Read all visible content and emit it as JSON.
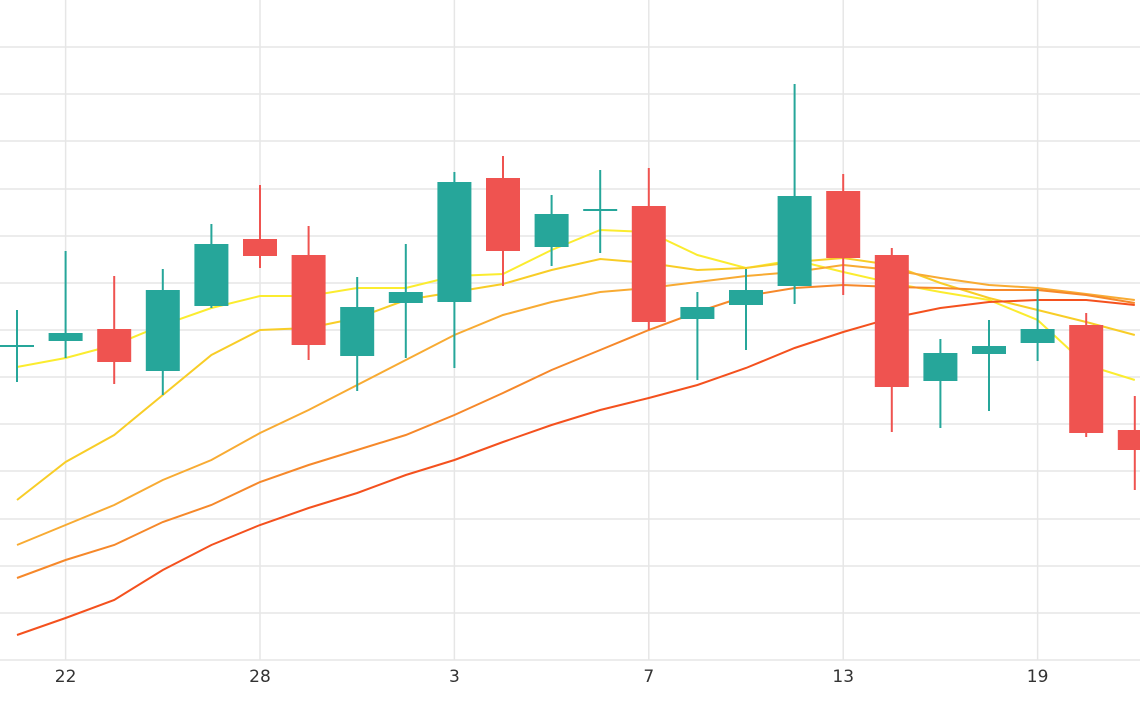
{
  "chart_data": {
    "type": "candlestick",
    "categories": [
      null,
      "22",
      null,
      null,
      null,
      "28",
      null,
      null,
      null,
      "3",
      null,
      null,
      null,
      "7",
      null,
      null,
      null,
      "13",
      null,
      null,
      null,
      "19",
      null,
      null
    ],
    "open": [
      314,
      319,
      331,
      289,
      354,
      421,
      405,
      304,
      357,
      358,
      482,
      413,
      450,
      454,
      341,
      355,
      374,
      469,
      405,
      279,
      306,
      317,
      335,
      230
    ],
    "high": [
      350,
      409,
      384,
      391,
      436,
      475,
      434,
      383,
      416,
      488,
      504,
      465,
      490,
      492,
      368,
      391,
      576,
      486,
      412,
      321,
      340,
      371,
      347,
      264
    ],
    "low": [
      278,
      302,
      276,
      265,
      352,
      392,
      300,
      269,
      302,
      292,
      374,
      394,
      407,
      330,
      280,
      310,
      356,
      365,
      228,
      232,
      249,
      299,
      223,
      170
    ],
    "close": [
      314,
      327,
      298,
      370,
      416,
      404,
      315,
      353,
      368,
      478,
      409,
      446,
      450,
      338,
      353,
      370,
      464,
      402,
      273,
      307,
      314,
      331,
      227,
      210
    ],
    "up_color": "#26a69a",
    "down_color": "#ef5350",
    "lines": [
      {
        "color": "#fbec2f",
        "values": [
          293,
          302,
          315,
          335,
          352,
          364,
          364,
          372,
          372,
          384,
          386,
          410,
          430,
          428,
          405,
          392,
          400,
          388,
          377,
          368,
          360,
          340,
          295,
          280
        ]
      },
      {
        "color": "#f8cd27",
        "values": [
          160,
          198,
          225,
          265,
          305,
          330,
          332,
          342,
          360,
          368,
          376,
          390,
          401,
          397,
          390,
          392,
          398,
          402,
          395,
          377,
          362,
          350,
          338,
          325
        ]
      },
      {
        "color": "#f8ab33",
        "values": [
          115,
          135,
          155,
          180,
          200,
          227,
          250,
          275,
          300,
          325,
          345,
          358,
          368,
          372,
          378,
          384,
          388,
          395,
          390,
          382,
          375,
          372,
          366,
          360
        ]
      },
      {
        "color": "#f6882a",
        "values": [
          82,
          100,
          115,
          138,
          155,
          178,
          195,
          210,
          225,
          245,
          267,
          290,
          310,
          330,
          348,
          364,
          372,
          375,
          373,
          372,
          370,
          370,
          365,
          357
        ]
      },
      {
        "color": "#f4511e",
        "values": [
          25,
          42,
          60,
          90,
          115,
          135,
          152,
          167,
          185,
          200,
          218,
          235,
          250,
          262,
          275,
          292,
          312,
          328,
          342,
          352,
          358,
          360,
          360,
          355
        ]
      }
    ],
    "ylim": [
      0,
      660
    ],
    "yticks": [
      47,
      94,
      141,
      189,
      236,
      283,
      330,
      377,
      424,
      471,
      519,
      566,
      613
    ],
    "grid": true
  }
}
